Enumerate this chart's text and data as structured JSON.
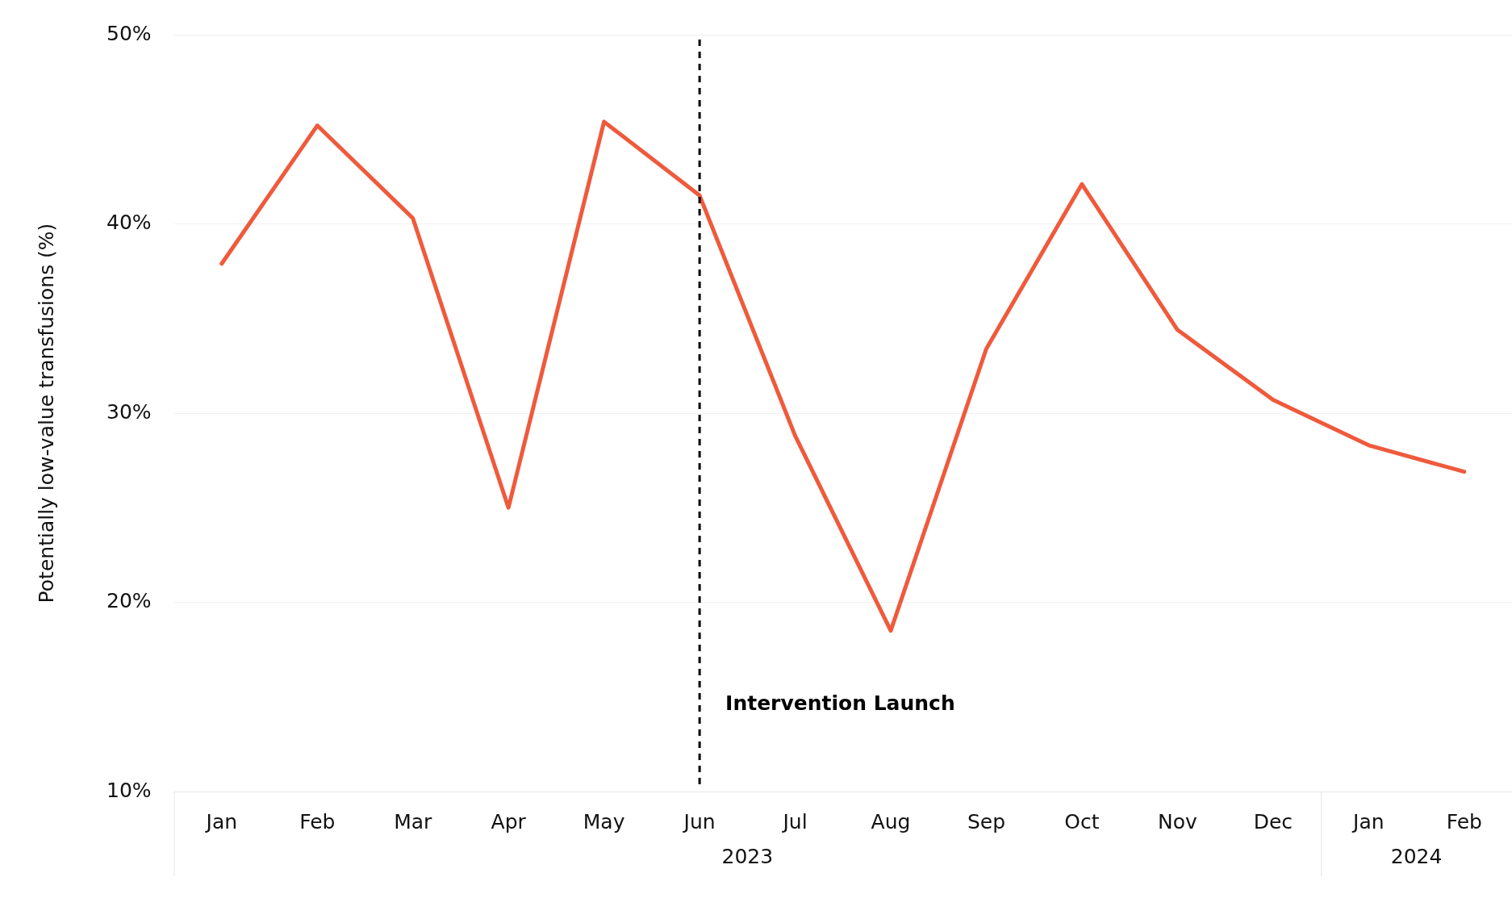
{
  "chart_data": {
    "type": "line",
    "ylabel": "Potentially low-value transfusions (%)",
    "categories": [
      "Jan",
      "Feb",
      "Mar",
      "Apr",
      "May",
      "Jun",
      "Jul",
      "Aug",
      "Sep",
      "Oct",
      "Nov",
      "Dec",
      "Jan",
      "Feb"
    ],
    "series": [
      {
        "color": "#ef5a3c",
        "values": [
          37.9,
          45.2,
          40.3,
          25.0,
          45.4,
          41.5,
          28.8,
          18.5,
          33.4,
          42.1,
          34.4,
          30.7,
          28.3,
          26.9
        ]
      }
    ],
    "ylim": [
      10,
      50
    ],
    "yticks": [
      {
        "value": 10,
        "label": "10%"
      },
      {
        "value": 20,
        "label": "20%"
      },
      {
        "value": 30,
        "label": "30%"
      },
      {
        "value": 40,
        "label": "40%"
      },
      {
        "value": 50,
        "label": "50%"
      }
    ],
    "grid": "y",
    "legend": false,
    "marker": "none",
    "line_style": "solid",
    "ref_lines": [
      {
        "axis": "x",
        "value": "Jun",
        "label": "Intervention Launch",
        "color": "#000000",
        "line_style": "dashed"
      }
    ],
    "annotations": [
      "2023",
      "2024"
    ]
  }
}
